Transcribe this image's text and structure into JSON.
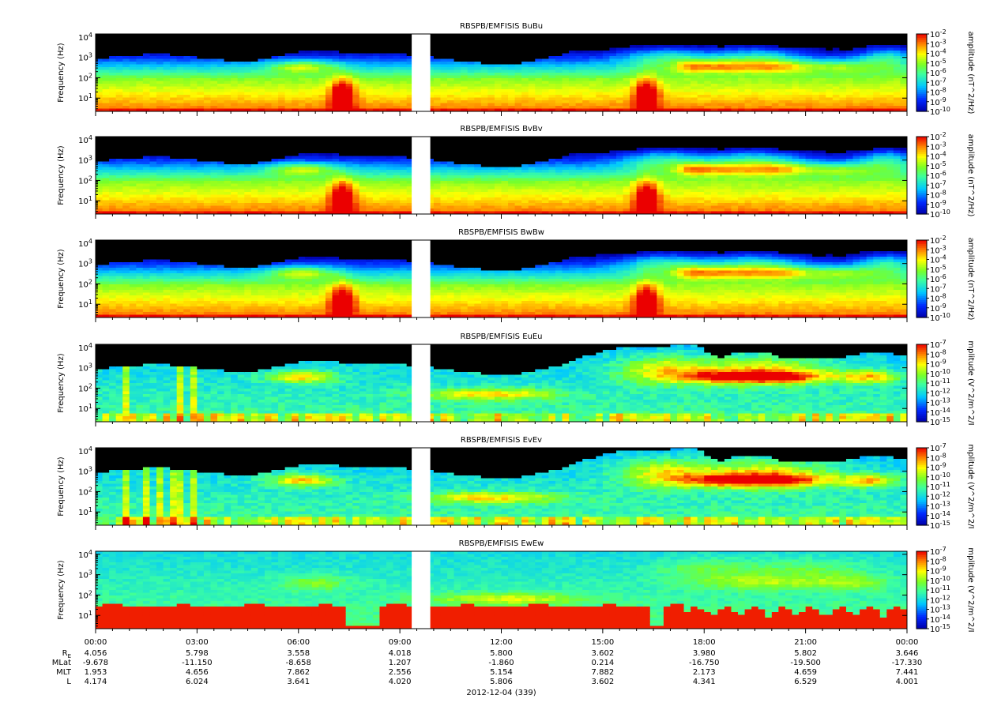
{
  "chart_data": {
    "type": "heatmap",
    "date_label": "2012-12-04 (339)",
    "xlim": [
      "00:00",
      "24:00"
    ],
    "x_ticks": [
      "00:00",
      "03:00",
      "06:00",
      "09:00",
      "12:00",
      "15:00",
      "18:00",
      "21:00",
      "00:00"
    ],
    "data_gap": {
      "start_hour": 9.35,
      "end_hour": 9.9
    },
    "ephemeris": {
      "rows": [
        {
          "name_main": "R",
          "name_sub": "E",
          "values": [
            "4.056",
            "5.798",
            "3.558",
            "4.018",
            "5.800",
            "3.602",
            "3.980",
            "5.802",
            "3.646"
          ]
        },
        {
          "name_main": "MLat",
          "name_sub": "",
          "values": [
            "-9.678",
            "-11.150",
            "-8.658",
            "1.207",
            "-1.860",
            "0.214",
            "-16.750",
            "-19.500",
            "-17.330"
          ]
        },
        {
          "name_main": "MLT",
          "name_sub": "",
          "values": [
            "1.953",
            "4.656",
            "7.862",
            "2.556",
            "5.154",
            "7.882",
            "2.173",
            "4.659",
            "7.441"
          ]
        },
        {
          "name_main": "L",
          "name_sub": "",
          "values": [
            "4.174",
            "6.024",
            "3.641",
            "4.020",
            "5.806",
            "3.602",
            "4.341",
            "6.529",
            "4.001"
          ]
        }
      ]
    },
    "panels": [
      {
        "title": "RBSPB/EMFISIS  BuBu",
        "ylabel": "Frequency (Hz)",
        "y_tick_exps": [
          "1",
          "2",
          "3",
          "4"
        ],
        "cbar_label": "amplitude (nT^2/Hz)",
        "cbar_exps": [
          "-2",
          "-3",
          "-4",
          "-5",
          "-6",
          "-7",
          "-8",
          "-9",
          "-10"
        ],
        "cbar_range_log10": [
          -10,
          -2
        ],
        "kind": "mag"
      },
      {
        "title": "RBSPB/EMFISIS  BvBv",
        "ylabel": "Frequency (Hz)",
        "y_tick_exps": [
          "1",
          "2",
          "3",
          "4"
        ],
        "cbar_label": "amplitude (nT^2/Hz)",
        "cbar_exps": [
          "-2",
          "-3",
          "-4",
          "-5",
          "-6",
          "-7",
          "-8",
          "-9",
          "-10"
        ],
        "cbar_range_log10": [
          -10,
          -2
        ],
        "kind": "mag"
      },
      {
        "title": "RBSPB/EMFISIS  BwBw",
        "ylabel": "Frequency (Hz)",
        "y_tick_exps": [
          "1",
          "2",
          "3",
          "4"
        ],
        "cbar_label": "amplitude (nT^2/Hz)",
        "cbar_exps": [
          "-2",
          "-3",
          "-4",
          "-5",
          "-6",
          "-7",
          "-8",
          "-9",
          "-10"
        ],
        "cbar_range_log10": [
          -10,
          -2
        ],
        "kind": "mag"
      },
      {
        "title": "RBSPB/EMFISIS  EuEu",
        "ylabel": "Frequency (Hz)",
        "y_tick_exps": [
          "1",
          "2",
          "3",
          "4"
        ],
        "cbar_label": "mplitude (V^2/m^2/I",
        "cbar_exps": [
          "-7",
          "-8",
          "-9",
          "-10",
          "-11",
          "-12",
          "-13",
          "-14",
          "-15"
        ],
        "cbar_range_log10": [
          -15,
          -7
        ],
        "kind": "elec"
      },
      {
        "title": "RBSPB/EMFISIS  EvEv",
        "ylabel": "Frequency (Hz)",
        "y_tick_exps": [
          "1",
          "2",
          "3",
          "4"
        ],
        "cbar_label": "mplitude (V^2/m^2/I",
        "cbar_exps": [
          "-7",
          "-8",
          "-9",
          "-10",
          "-11",
          "-12",
          "-13",
          "-14",
          "-15"
        ],
        "cbar_range_log10": [
          -15,
          -7
        ],
        "kind": "elec"
      },
      {
        "title": "RBSPB/EMFISIS  EwEw",
        "ylabel": "Frequency (Hz)",
        "y_tick_exps": [
          "1",
          "2",
          "3",
          "4"
        ],
        "cbar_label": "mplitude (V^2/m^2/I",
        "cbar_exps": [
          "-7",
          "-8",
          "-9",
          "-10",
          "-11",
          "-12",
          "-13",
          "-14",
          "-15"
        ],
        "cbar_range_log10": [
          -15,
          -7
        ],
        "kind": "ew"
      }
    ]
  }
}
